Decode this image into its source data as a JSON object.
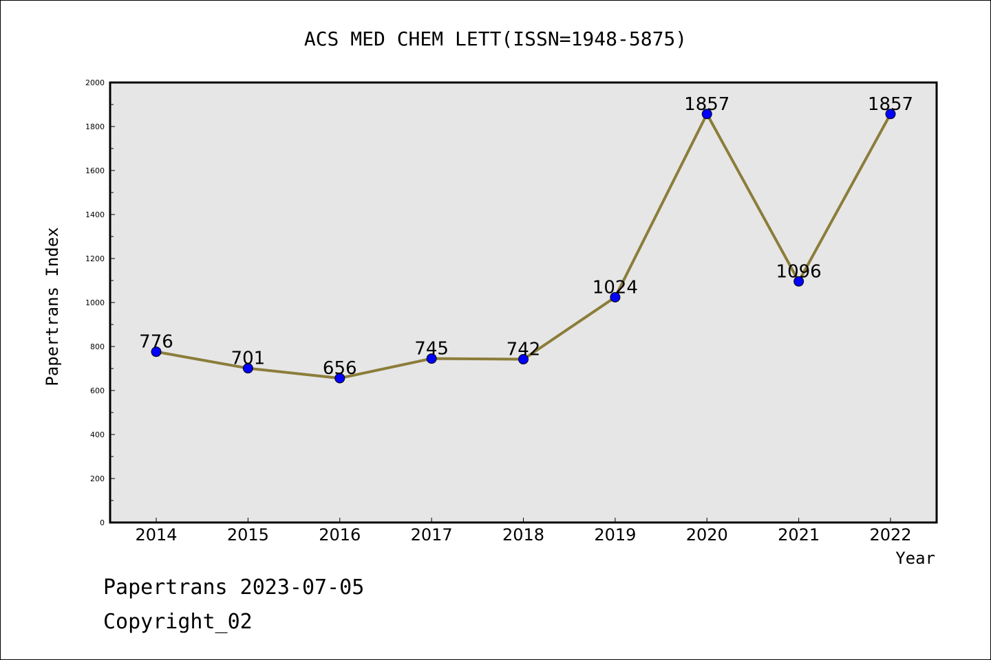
{
  "chart_data": {
    "type": "line",
    "title": "ACS MED CHEM LETT(ISSN=1948-5875)",
    "xlabel": "Year",
    "ylabel": "Papertrans Index",
    "categories": [
      "2014",
      "2015",
      "2016",
      "2017",
      "2018",
      "2019",
      "2020",
      "2021",
      "2022"
    ],
    "series": [
      {
        "values": [
          776,
          701,
          656,
          745,
          742,
          1024,
          1857,
          1096,
          1857
        ]
      }
    ],
    "ylim": [
      0,
      2000
    ],
    "yticks": [
      0,
      200,
      400,
      600,
      800,
      1000,
      1200,
      1400,
      1600,
      1800,
      2000
    ],
    "grid": false,
    "colors": {
      "line": "#8b7d3a",
      "marker": "#0000ff",
      "plot_bg": "#e6e6e6"
    }
  },
  "footer": {
    "line1": "Papertrans 2023-07-05",
    "line2": "Copyright_02"
  }
}
